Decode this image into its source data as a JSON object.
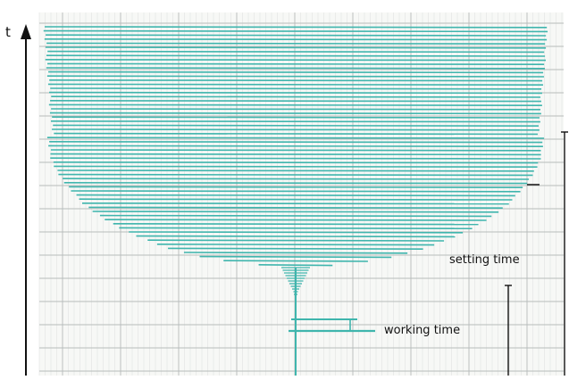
{
  "labels": {
    "axis_t": "t",
    "setting_time": "setting time",
    "working_time": "working time"
  },
  "colors": {
    "trace": "#3fb5ad",
    "grid_major": "#b7bcbb",
    "grid_minor": "#e1e3e2",
    "paper": "#f7f8f6",
    "ink": "#111111"
  }
}
